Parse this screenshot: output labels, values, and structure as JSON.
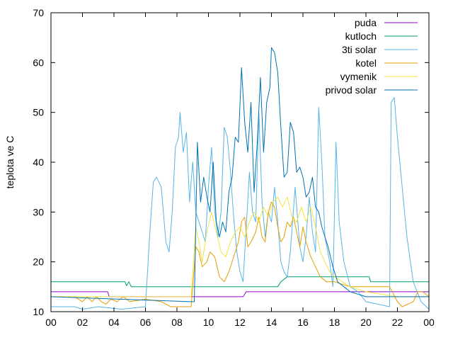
{
  "chart_data": {
    "type": "line",
    "title": "",
    "xlabel": "",
    "ylabel": "teplota ve C",
    "xlim": [
      0,
      24
    ],
    "ylim": [
      10,
      70
    ],
    "x_ticks": [
      "00",
      "02",
      "04",
      "06",
      "08",
      "10",
      "12",
      "14",
      "16",
      "18",
      "20",
      "22",
      "00"
    ],
    "y_ticks": [
      10,
      20,
      30,
      40,
      50,
      60,
      70
    ],
    "grid": false,
    "legend_position": "top-right",
    "series": [
      {
        "name": "puda",
        "color": "#9400d3",
        "points": [
          [
            0,
            14
          ],
          [
            1.5,
            14
          ],
          [
            1.6,
            14
          ],
          [
            3.6,
            14
          ],
          [
            3.7,
            13
          ],
          [
            8.9,
            13
          ],
          [
            9.1,
            13
          ],
          [
            12.2,
            13
          ],
          [
            12.4,
            14
          ],
          [
            17.8,
            14
          ],
          [
            18,
            14
          ],
          [
            24,
            14
          ]
        ]
      },
      {
        "name": "kutloch",
        "color": "#009e73",
        "points": [
          [
            0,
            16
          ],
          [
            4.7,
            16
          ],
          [
            4.8,
            15.2
          ],
          [
            4.95,
            16
          ],
          [
            5.1,
            15
          ],
          [
            9.2,
            15
          ],
          [
            9.5,
            15
          ],
          [
            14.4,
            15
          ],
          [
            14.6,
            16
          ],
          [
            15,
            17
          ],
          [
            20.2,
            17
          ],
          [
            20.3,
            16
          ],
          [
            24,
            16
          ]
        ]
      },
      {
        "name": "3ti solar",
        "color": "#56b4e9",
        "points": [
          [
            0,
            11
          ],
          [
            1.5,
            11
          ],
          [
            2,
            10.5
          ],
          [
            3,
            11
          ],
          [
            4.5,
            10.5
          ],
          [
            6,
            11
          ],
          [
            6.3,
            27
          ],
          [
            6.5,
            36
          ],
          [
            6.7,
            37
          ],
          [
            7.0,
            35
          ],
          [
            7.3,
            24
          ],
          [
            7.5,
            22
          ],
          [
            7.7,
            30
          ],
          [
            7.9,
            43
          ],
          [
            8.1,
            45
          ],
          [
            8.2,
            50
          ],
          [
            8.4,
            42
          ],
          [
            8.6,
            46
          ],
          [
            8.8,
            32
          ],
          [
            9.0,
            40
          ],
          [
            9.2,
            30
          ],
          [
            9.4,
            28
          ],
          [
            9.8,
            24
          ],
          [
            10.0,
            35
          ],
          [
            10.2,
            43
          ],
          [
            10.4,
            30
          ],
          [
            10.6,
            25
          ],
          [
            10.8,
            30
          ],
          [
            11.0,
            47
          ],
          [
            11.2,
            45
          ],
          [
            11.4,
            38
          ],
          [
            11.6,
            29
          ],
          [
            11.8,
            22
          ],
          [
            12.0,
            18
          ],
          [
            12.2,
            16
          ],
          [
            12.4,
            27
          ],
          [
            12.6,
            38
          ],
          [
            12.8,
            30
          ],
          [
            13.0,
            28
          ],
          [
            13.2,
            50
          ],
          [
            13.4,
            32
          ],
          [
            13.6,
            25
          ],
          [
            13.8,
            30
          ],
          [
            14.0,
            28
          ],
          [
            14.2,
            35
          ],
          [
            14.4,
            28
          ],
          [
            14.6,
            20
          ],
          [
            14.8,
            18
          ],
          [
            15.0,
            17
          ],
          [
            15.2,
            22
          ],
          [
            15.5,
            35
          ],
          [
            15.8,
            23
          ],
          [
            16.0,
            20
          ],
          [
            16.2,
            25
          ],
          [
            16.4,
            33
          ],
          [
            16.6,
            26
          ],
          [
            16.8,
            22
          ],
          [
            17.0,
            51
          ],
          [
            17.2,
            40
          ],
          [
            17.4,
            25
          ],
          [
            17.7,
            20
          ],
          [
            17.9,
            15
          ],
          [
            18.1,
            44
          ],
          [
            18.3,
            28
          ],
          [
            18.6,
            20
          ],
          [
            19.0,
            15
          ],
          [
            19.5,
            14
          ],
          [
            20.0,
            12
          ],
          [
            21.5,
            11
          ],
          [
            21.6,
            52
          ],
          [
            21.8,
            53
          ],
          [
            22.0,
            45
          ],
          [
            22.3,
            35
          ],
          [
            22.6,
            25
          ],
          [
            23.0,
            16
          ],
          [
            23.5,
            12
          ],
          [
            24,
            10.5
          ]
        ]
      },
      {
        "name": "kotel",
        "color": "#e69f00",
        "points": [
          [
            0,
            13
          ],
          [
            1.5,
            13
          ],
          [
            2,
            12
          ],
          [
            2.3,
            13
          ],
          [
            2.6,
            12
          ],
          [
            2.9,
            13
          ],
          [
            3.2,
            12
          ],
          [
            3.5,
            11.5
          ],
          [
            3.8,
            12.5
          ],
          [
            4.2,
            12
          ],
          [
            4.6,
            13
          ],
          [
            5.0,
            12
          ],
          [
            6.0,
            12.5
          ],
          [
            7.0,
            12
          ],
          [
            7.6,
            11
          ],
          [
            8.9,
            11
          ],
          [
            9.2,
            23
          ],
          [
            9.4,
            22
          ],
          [
            9.6,
            19
          ],
          [
            9.9,
            20
          ],
          [
            10.1,
            22
          ],
          [
            10.4,
            21
          ],
          [
            10.7,
            17
          ],
          [
            11.0,
            16
          ],
          [
            11.3,
            18
          ],
          [
            11.6,
            21
          ],
          [
            11.9,
            24
          ],
          [
            12.1,
            28
          ],
          [
            12.3,
            29
          ],
          [
            12.5,
            23
          ],
          [
            12.7,
            24
          ],
          [
            13.0,
            26
          ],
          [
            13.2,
            29
          ],
          [
            13.4,
            25
          ],
          [
            13.6,
            24
          ],
          [
            13.8,
            30
          ],
          [
            14.0,
            32
          ],
          [
            14.2,
            31
          ],
          [
            14.4,
            27
          ],
          [
            14.6,
            24
          ],
          [
            14.8,
            25
          ],
          [
            15.0,
            28
          ],
          [
            15.2,
            27
          ],
          [
            15.4,
            29
          ],
          [
            15.6,
            26
          ],
          [
            15.8,
            23
          ],
          [
            16.0,
            27
          ],
          [
            16.2,
            24
          ],
          [
            16.5,
            21
          ],
          [
            16.8,
            19
          ],
          [
            17.1,
            17
          ],
          [
            17.5,
            16
          ],
          [
            18.0,
            16
          ],
          [
            19.0,
            15
          ],
          [
            20.0,
            15
          ],
          [
            21.5,
            15
          ],
          [
            22.0,
            12
          ],
          [
            22.3,
            11
          ],
          [
            23.0,
            12
          ],
          [
            23.3,
            14
          ],
          [
            23.6,
            14
          ],
          [
            24,
            13
          ]
        ]
      },
      {
        "name": "vymenik",
        "color": "#f0e442",
        "points": [
          [
            0,
            13
          ],
          [
            8.9,
            13
          ],
          [
            9.2,
            27
          ],
          [
            9.4,
            24
          ],
          [
            9.6,
            20
          ],
          [
            9.9,
            26
          ],
          [
            10.2,
            30
          ],
          [
            10.5,
            26
          ],
          [
            10.8,
            22
          ],
          [
            11.1,
            21
          ],
          [
            11.4,
            24
          ],
          [
            11.7,
            26
          ],
          [
            12.0,
            27
          ],
          [
            12.3,
            25
          ],
          [
            12.6,
            28
          ],
          [
            12.9,
            30
          ],
          [
            13.2,
            28
          ],
          [
            13.5,
            31
          ],
          [
            13.8,
            29
          ],
          [
            14.1,
            32
          ],
          [
            14.4,
            33
          ],
          [
            14.7,
            31
          ],
          [
            15.0,
            33
          ],
          [
            15.3,
            29
          ],
          [
            15.6,
            28
          ],
          [
            15.9,
            31
          ],
          [
            16.2,
            28
          ],
          [
            16.5,
            31
          ],
          [
            16.8,
            27
          ],
          [
            17.1,
            22
          ],
          [
            17.4,
            20
          ],
          [
            17.7,
            18
          ],
          [
            18.0,
            17
          ],
          [
            18.5,
            16
          ],
          [
            19.0,
            15
          ],
          [
            20.0,
            14
          ],
          [
            22.0,
            13
          ],
          [
            24,
            13
          ]
        ]
      },
      {
        "name": "privod solar",
        "color": "#0072b2",
        "points": [
          [
            0,
            13
          ],
          [
            8.9,
            12
          ],
          [
            9.1,
            12
          ],
          [
            9.3,
            44
          ],
          [
            9.5,
            32
          ],
          [
            9.7,
            37
          ],
          [
            9.9,
            33
          ],
          [
            10.1,
            30
          ],
          [
            10.3,
            40
          ],
          [
            10.5,
            28
          ],
          [
            10.7,
            25
          ],
          [
            10.9,
            28
          ],
          [
            11.1,
            26
          ],
          [
            11.3,
            34
          ],
          [
            11.5,
            37
          ],
          [
            11.7,
            45
          ],
          [
            11.9,
            44
          ],
          [
            12.1,
            59
          ],
          [
            12.3,
            48
          ],
          [
            12.5,
            42
          ],
          [
            12.7,
            52
          ],
          [
            12.9,
            34
          ],
          [
            13.1,
            44
          ],
          [
            13.3,
            57
          ],
          [
            13.5,
            42
          ],
          [
            13.7,
            52
          ],
          [
            13.9,
            55
          ],
          [
            14.0,
            63
          ],
          [
            14.2,
            62
          ],
          [
            14.4,
            58
          ],
          [
            14.6,
            47
          ],
          [
            14.8,
            37
          ],
          [
            15.0,
            38
          ],
          [
            15.2,
            48
          ],
          [
            15.4,
            46
          ],
          [
            15.6,
            38
          ],
          [
            15.8,
            39
          ],
          [
            16.0,
            37
          ],
          [
            16.2,
            33
          ],
          [
            16.4,
            34
          ],
          [
            16.6,
            37
          ],
          [
            16.8,
            31
          ],
          [
            17.0,
            30
          ],
          [
            17.2,
            27
          ],
          [
            17.4,
            25
          ],
          [
            17.6,
            23
          ],
          [
            17.9,
            19
          ],
          [
            18.2,
            16
          ],
          [
            18.6,
            15
          ],
          [
            19.0,
            14
          ],
          [
            20.0,
            13
          ],
          [
            24,
            13
          ]
        ]
      }
    ]
  }
}
